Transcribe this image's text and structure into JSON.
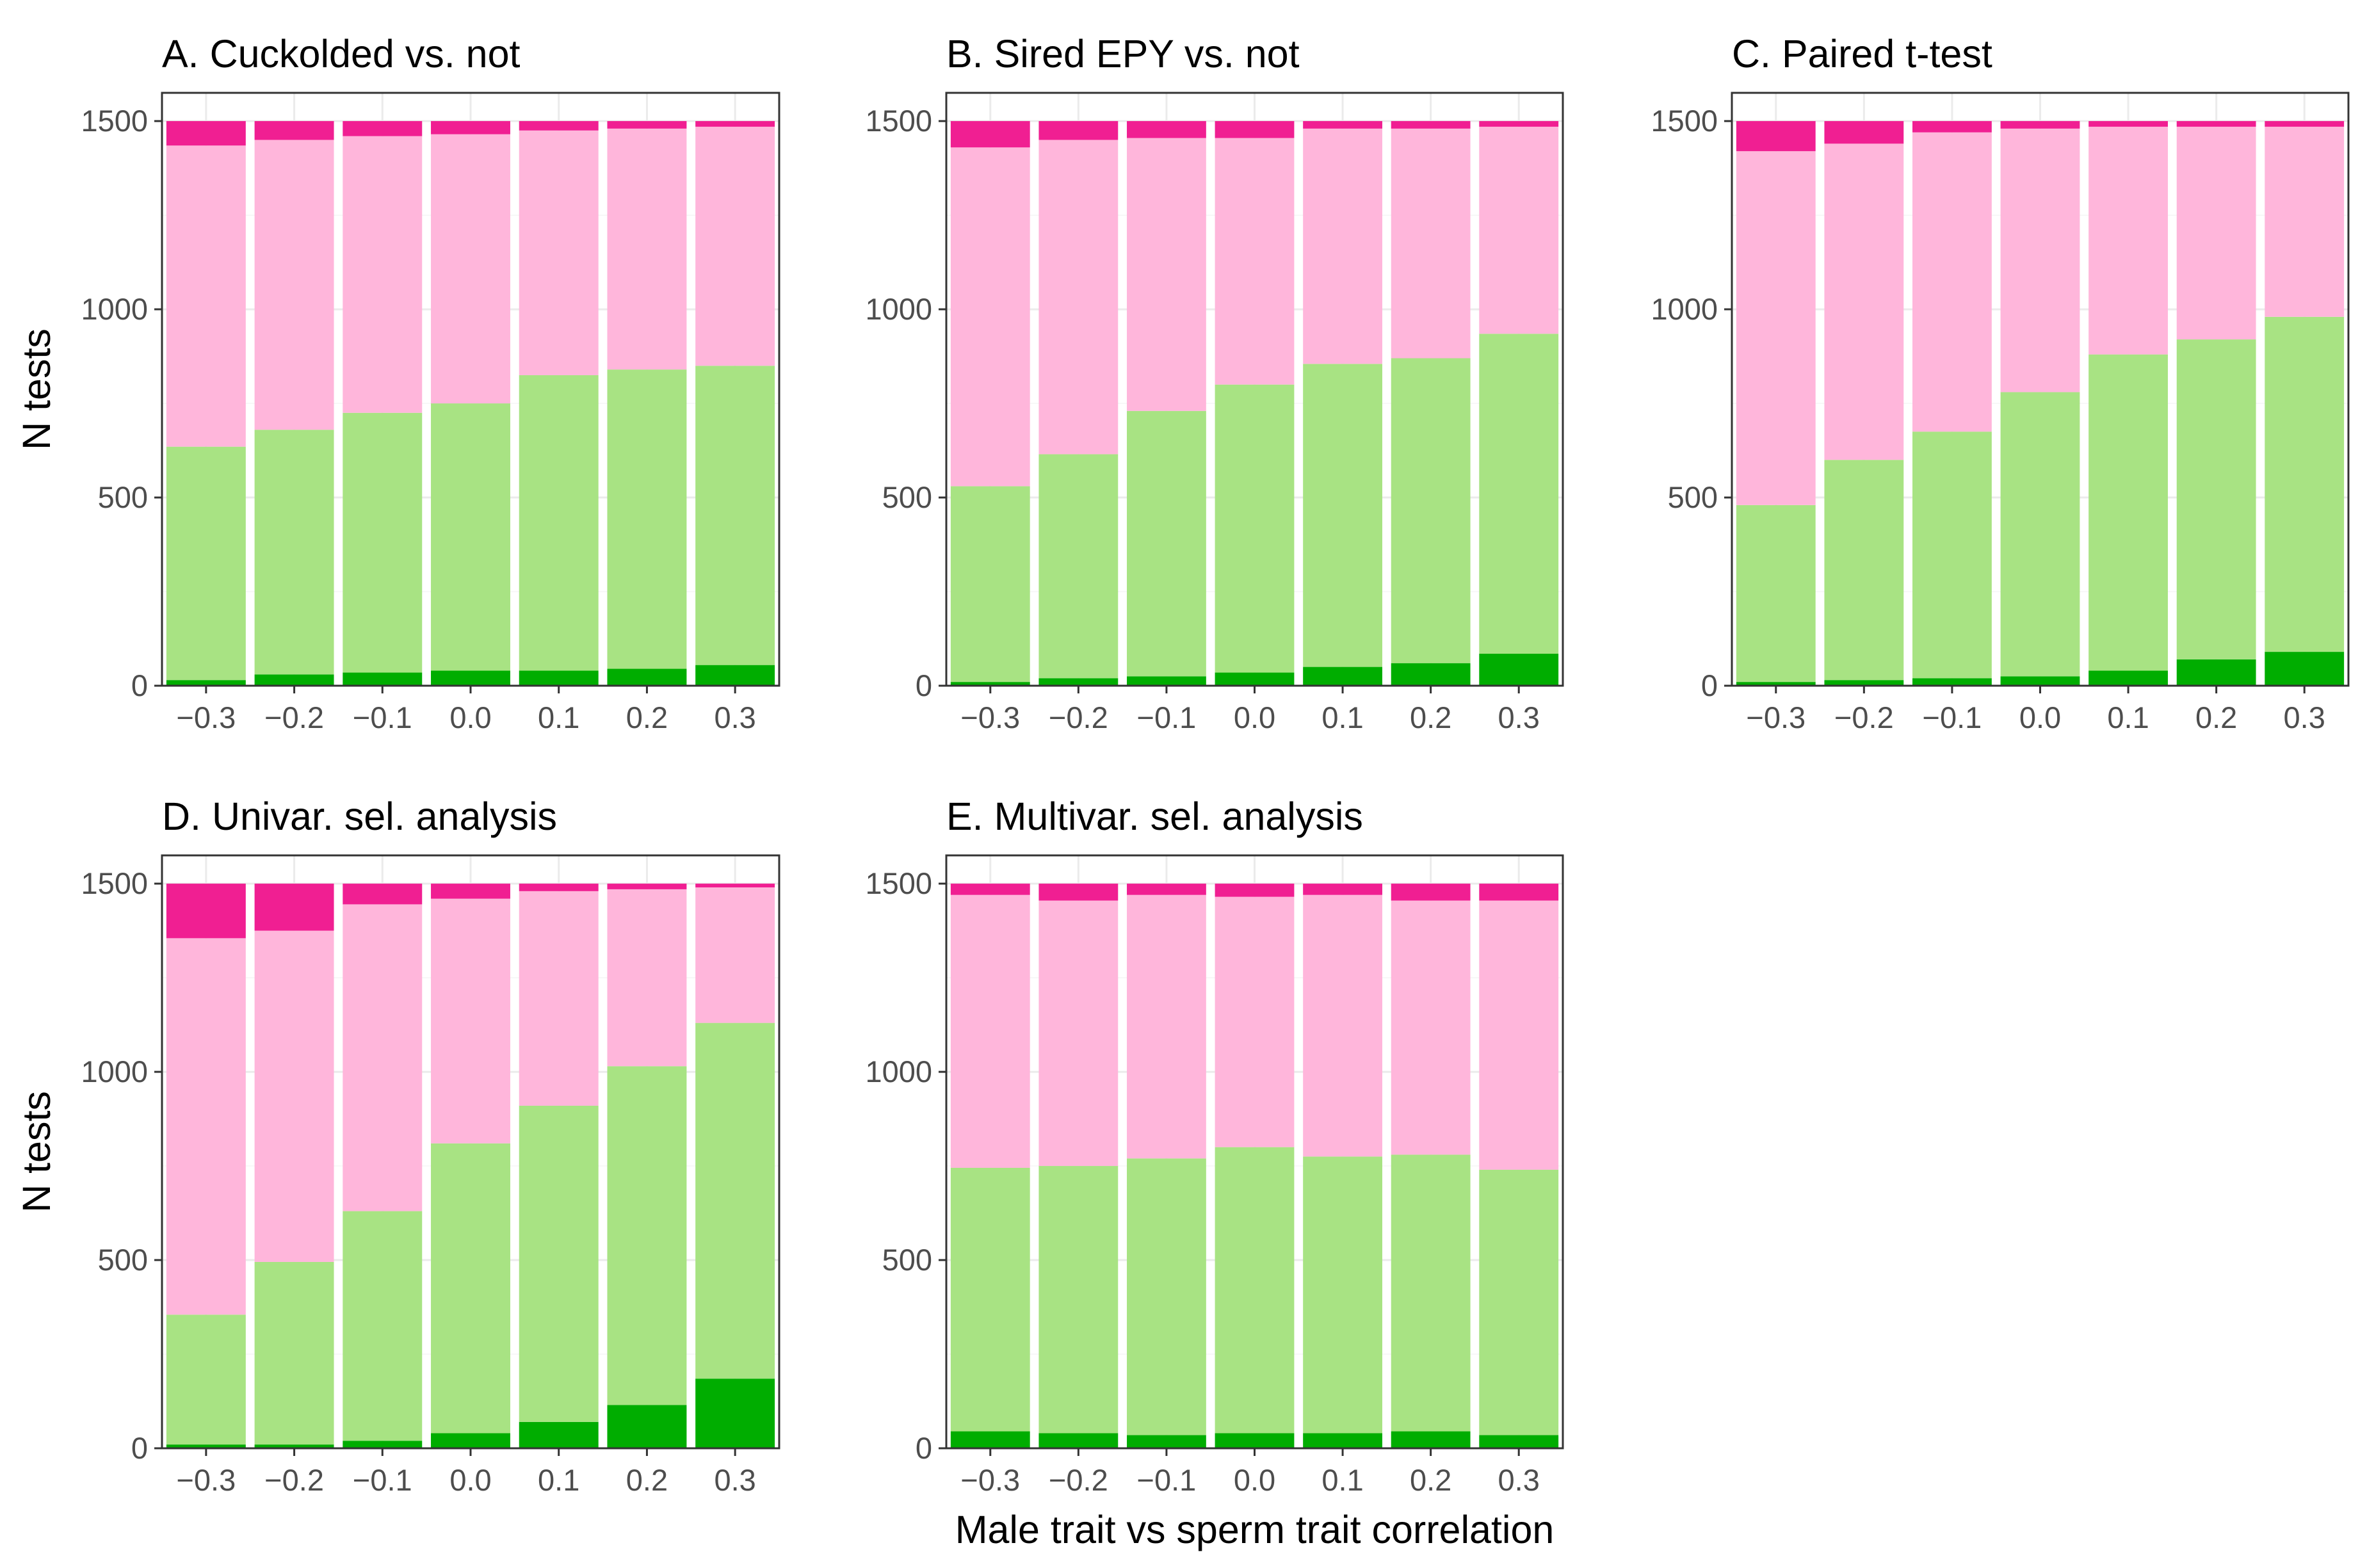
{
  "chart_data": {
    "type": "bar",
    "stacked": true,
    "x_axis_title": "Male trait vs sperm trait correlation",
    "y_axis_title": "N tests",
    "categories": [
      "−0.3",
      "−0.2",
      "−0.1",
      "0.0",
      "0.1",
      "0.2",
      "0.3"
    ],
    "y_ticks": [
      "0",
      "500",
      "1000",
      "1500"
    ],
    "ylim": [
      0,
      1575
    ],
    "series_colors": [
      "#00ad00",
      "#a8e383",
      "#ffb6db",
      "#f01f92"
    ],
    "panels": [
      {
        "title": "A. Cuckolded vs. not",
        "show_y_title": true,
        "show_x_title": false,
        "series": [
          {
            "name": "dark green",
            "values": [
              15,
              30,
              35,
              40,
              40,
              45,
              55
            ]
          },
          {
            "name": "light green",
            "values": [
              620,
              650,
              690,
              710,
              785,
              795,
              795
            ]
          },
          {
            "name": "light pink",
            "values": [
              800,
              770,
              735,
              715,
              650,
              640,
              635
            ]
          },
          {
            "name": "dark pink",
            "values": [
              65,
              50,
              40,
              35,
              25,
              20,
              15
            ]
          }
        ]
      },
      {
        "title": "B. Sired EPY vs. not",
        "show_y_title": false,
        "show_x_title": false,
        "series": [
          {
            "name": "dark green",
            "values": [
              10,
              20,
              25,
              35,
              50,
              60,
              85
            ]
          },
          {
            "name": "light green",
            "values": [
              520,
              595,
              705,
              765,
              805,
              810,
              850
            ]
          },
          {
            "name": "light pink",
            "values": [
              900,
              835,
              725,
              655,
              625,
              610,
              550
            ]
          },
          {
            "name": "dark pink",
            "values": [
              70,
              50,
              45,
              45,
              20,
              20,
              15
            ]
          }
        ]
      },
      {
        "title": "C. Paired t-test",
        "show_y_title": false,
        "show_x_title": false,
        "series": [
          {
            "name": "dark green",
            "values": [
              10,
              15,
              20,
              25,
              40,
              70,
              90
            ]
          },
          {
            "name": "light green",
            "values": [
              470,
              585,
              655,
              755,
              840,
              850,
              890
            ]
          },
          {
            "name": "light pink",
            "values": [
              940,
              840,
              795,
              700,
              605,
              565,
              505
            ]
          },
          {
            "name": "dark pink",
            "values": [
              80,
              60,
              30,
              20,
              15,
              15,
              15
            ]
          }
        ]
      },
      {
        "title": "D. Univar. sel. analysis",
        "show_y_title": true,
        "show_x_title": false,
        "series": [
          {
            "name": "dark green",
            "values": [
              10,
              10,
              20,
              40,
              70,
              115,
              185
            ]
          },
          {
            "name": "light green",
            "values": [
              345,
              485,
              610,
              770,
              840,
              900,
              945
            ]
          },
          {
            "name": "light pink",
            "values": [
              1000,
              880,
              815,
              650,
              570,
              470,
              360
            ]
          },
          {
            "name": "dark pink",
            "values": [
              145,
              125,
              55,
              40,
              20,
              15,
              10
            ]
          }
        ]
      },
      {
        "title": "E. Multivar. sel. analysis",
        "show_y_title": false,
        "show_x_title": true,
        "series": [
          {
            "name": "dark green",
            "values": [
              45,
              40,
              35,
              40,
              40,
              45,
              35
            ]
          },
          {
            "name": "light green",
            "values": [
              700,
              710,
              735,
              760,
              735,
              735,
              705
            ]
          },
          {
            "name": "light pink",
            "values": [
              725,
              705,
              700,
              665,
              695,
              675,
              715
            ]
          },
          {
            "name": "dark pink",
            "values": [
              30,
              45,
              30,
              35,
              30,
              45,
              45
            ]
          }
        ]
      }
    ]
  }
}
